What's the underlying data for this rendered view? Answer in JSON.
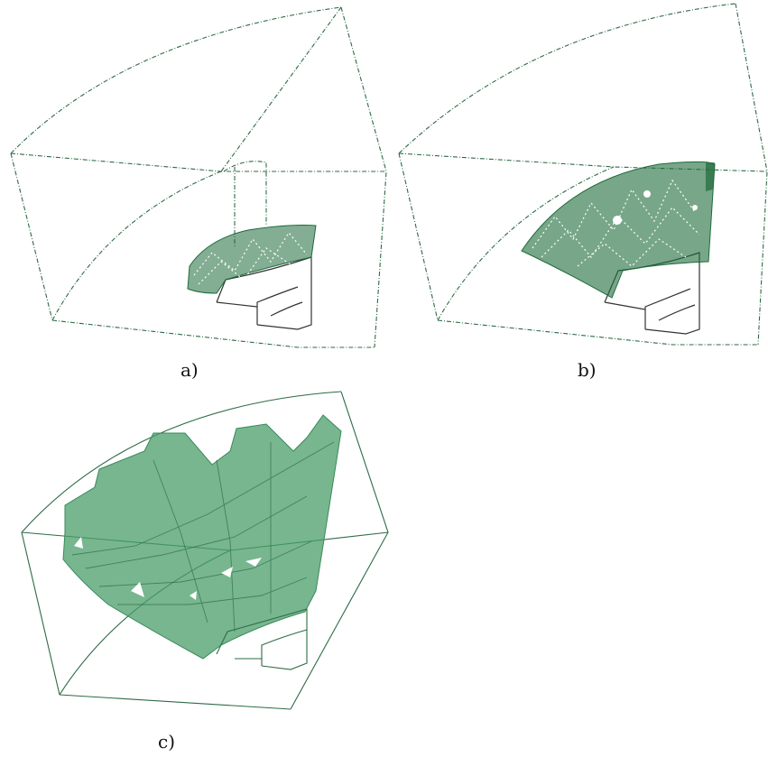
{
  "figure": {
    "panels": [
      {
        "id": "a",
        "caption": "a)",
        "mesh_color": "#1e6b3a",
        "frame_color": "#2e6b45"
      },
      {
        "id": "b",
        "caption": "b)",
        "mesh_color": "#1e6b3a",
        "frame_color": "#2e6b45"
      },
      {
        "id": "c",
        "caption": "c)",
        "mesh_color": "#4a9e6a",
        "frame_color": "#3a8a5a"
      }
    ]
  }
}
